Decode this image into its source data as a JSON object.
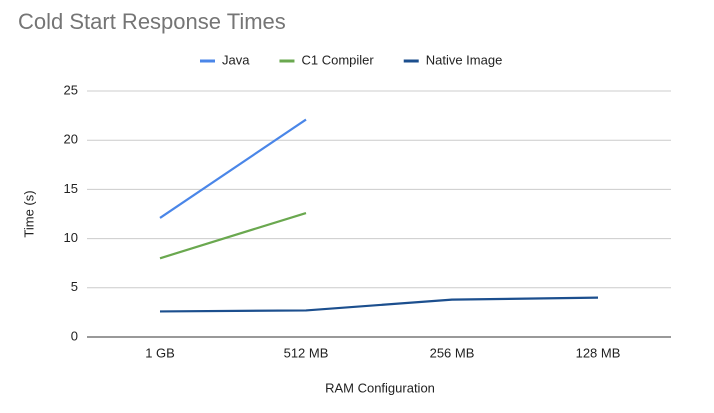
{
  "chart_data": {
    "type": "line",
    "title": "Cold Start Response Times",
    "x_label": "RAM Configuration",
    "y_label": "Time (s)",
    "categories": [
      "1 GB",
      "512 MB",
      "256 MB",
      "128 MB"
    ],
    "series": [
      {
        "name": "Java",
        "color": "#4a86e8",
        "values": [
          12.1,
          22.1,
          null,
          null
        ]
      },
      {
        "name": "C1 Compiler",
        "color": "#6aa84f",
        "values": [
          8.0,
          12.6,
          null,
          null
        ]
      },
      {
        "name": "Native Image",
        "color": "#1c4f8e",
        "values": [
          2.6,
          2.7,
          3.8,
          4.0
        ]
      }
    ],
    "ylim": [
      0,
      25
    ],
    "yticks": [
      0,
      5,
      10,
      15,
      20,
      25
    ],
    "grid": true
  }
}
